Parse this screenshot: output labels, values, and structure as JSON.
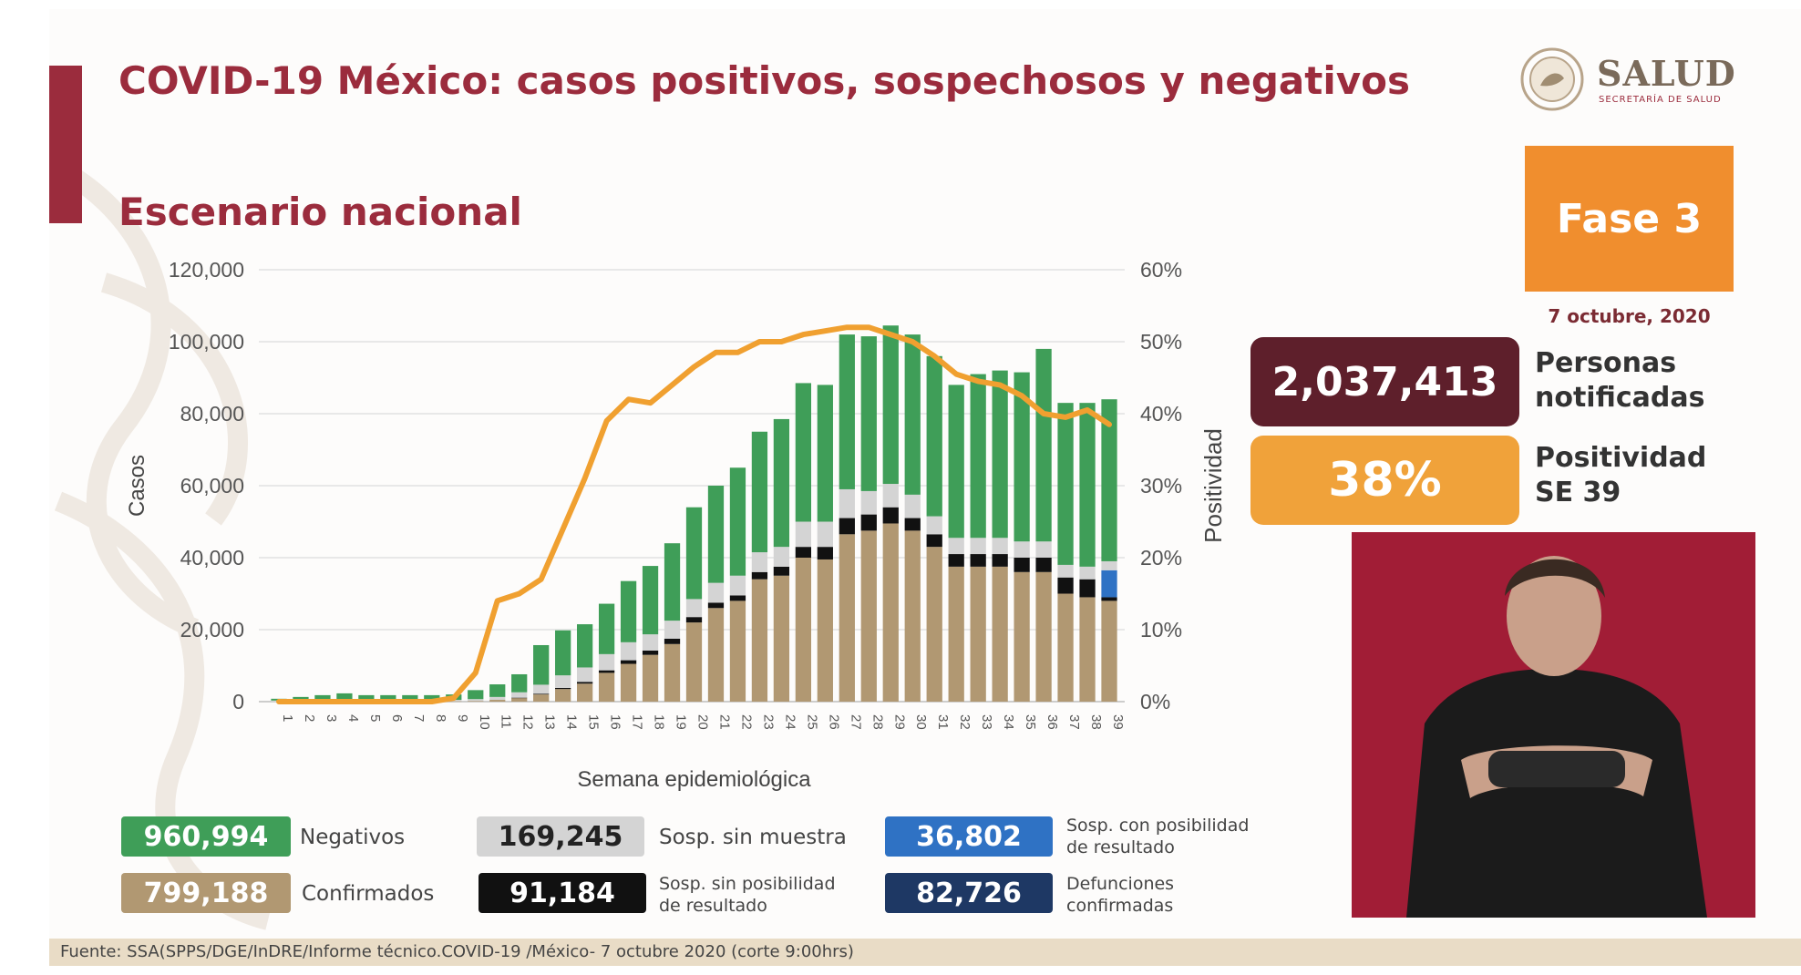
{
  "header": {
    "title": "COVID-19 México: casos positivos, sospechosos y negativos",
    "subtitle": "Escenario nacional"
  },
  "logo": {
    "name": "SALUD",
    "sub": "SECRETARÍA DE SALUD"
  },
  "phase": {
    "label": "Fase 3",
    "date": "7 octubre, 2020"
  },
  "stats": {
    "notificadas": {
      "value": "2,037,413",
      "label_1": "Personas",
      "label_2": "notificadas",
      "color": "#5e1f2b"
    },
    "positividad": {
      "value": "38%",
      "label_1": "Positividad",
      "label_2": "SE 39",
      "color": "#f0a23a"
    }
  },
  "legend": [
    {
      "value": "960,994",
      "label": "Negativos",
      "color": "#3f9e58"
    },
    {
      "value": "169,245",
      "label": "Sosp. sin muestra",
      "color": "#d4d4d4"
    },
    {
      "value": "36,802",
      "label_1": "Sosp. con posibilidad",
      "label_2": "de resultado",
      "color": "#2f72c4"
    },
    {
      "value": "799,188",
      "label": "Confirmados",
      "color": "#b19872"
    },
    {
      "value": "91,184",
      "label_1": "Sosp. sin posibilidad",
      "label_2": "de resultado",
      "color": "#111111"
    },
    {
      "value": "82,726",
      "label_1": "Defunciones",
      "label_2": "confirmadas",
      "color": "#1e3864"
    }
  ],
  "footer": "Fuente: SSA(SPPS/DGE/InDRE/Informe técnico.COVID-19 /México- 7 octubre 2020 (corte 9:00hrs)",
  "chart_data": {
    "type": "bar",
    "stacked": true,
    "xlabel": "Semana epidemiológica",
    "ylabel": "Casos",
    "y2label": "Positividad",
    "ylim": [
      0,
      120000
    ],
    "y2lim": [
      0,
      60
    ],
    "yticks": [
      "0",
      "20,000",
      "40,000",
      "60,000",
      "80,000",
      "100,000",
      "120,000"
    ],
    "y2ticks": [
      "0%",
      "10%",
      "20%",
      "30%",
      "40%",
      "50%",
      "60%"
    ],
    "grid": true,
    "categories": [
      "1",
      "2",
      "3",
      "4",
      "5",
      "6",
      "7",
      "8",
      "9",
      "10",
      "11",
      "12",
      "13",
      "14",
      "15",
      "16",
      "17",
      "18",
      "19",
      "20",
      "21",
      "22",
      "23",
      "24",
      "25",
      "26",
      "27",
      "28",
      "29",
      "30",
      "31",
      "32",
      "33",
      "34",
      "35",
      "36",
      "37",
      "38",
      "39"
    ],
    "series": [
      {
        "name": "Confirmados",
        "color": "#b19872",
        "values": [
          0,
          0,
          0,
          0,
          0,
          0,
          0,
          0,
          100,
          200,
          500,
          1000,
          2000,
          3500,
          5000,
          8000,
          10500,
          13000,
          16000,
          22000,
          26000,
          28000,
          34000,
          35000,
          40000,
          39500,
          46500,
          47500,
          49500,
          47500,
          43000,
          37500,
          37500,
          37500,
          36000,
          36000,
          30000,
          29000,
          28000
        ]
      },
      {
        "name": "Sosp. sin posibilidad de resultado",
        "color": "#111111",
        "values": [
          0,
          0,
          0,
          0,
          0,
          0,
          0,
          0,
          0,
          0,
          0,
          100,
          200,
          300,
          500,
          700,
          1000,
          1200,
          1500,
          1500,
          1500,
          1500,
          2000,
          2500,
          3000,
          3500,
          4500,
          4500,
          4500,
          3500,
          3500,
          3500,
          3500,
          3500,
          4000,
          4000,
          4500,
          5000,
          1000
        ]
      },
      {
        "name": "Sosp. con posibilidad de resultado",
        "color": "#2f72c4",
        "values": [
          0,
          0,
          0,
          0,
          0,
          0,
          0,
          0,
          0,
          0,
          0,
          0,
          0,
          0,
          0,
          0,
          0,
          0,
          0,
          0,
          0,
          0,
          0,
          0,
          0,
          0,
          0,
          0,
          0,
          0,
          0,
          0,
          0,
          0,
          0,
          0,
          0,
          0,
          7500
        ]
      },
      {
        "name": "Sosp. sin muestra",
        "color": "#d4d4d4",
        "values": [
          300,
          300,
          300,
          300,
          300,
          300,
          300,
          300,
          400,
          500,
          800,
          1500,
          2500,
          3500,
          4000,
          4500,
          5000,
          4500,
          5000,
          5000,
          5500,
          5500,
          5500,
          5500,
          7000,
          7000,
          8000,
          6500,
          6500,
          6500,
          5000,
          4500,
          4500,
          4500,
          4500,
          4500,
          3500,
          3500,
          2500
        ]
      },
      {
        "name": "Negativos",
        "color": "#3f9e58",
        "values": [
          500,
          1000,
          1500,
          2000,
          1500,
          1500,
          1500,
          1500,
          1500,
          2500,
          3500,
          5000,
          11000,
          12500,
          12000,
          14000,
          17000,
          19000,
          21500,
          25500,
          27000,
          30000,
          33500,
          35500,
          38500,
          38000,
          43000,
          43000,
          44000,
          44500,
          44500,
          42500,
          45500,
          46500,
          47000,
          53500,
          45000,
          45500,
          45000
        ]
      }
    ],
    "line": {
      "name": "Positividad",
      "color": "#f0a030",
      "values": [
        0,
        0,
        0,
        0,
        0,
        0,
        0,
        0,
        0.5,
        4,
        14,
        15,
        17,
        24,
        31,
        39,
        42,
        41.5,
        44,
        46.5,
        48.5,
        48.5,
        50,
        50,
        51,
        51.5,
        52,
        52,
        51,
        50,
        48,
        45.5,
        44.5,
        44,
        42.5,
        40,
        39.5,
        40.5,
        38.5
      ]
    }
  }
}
